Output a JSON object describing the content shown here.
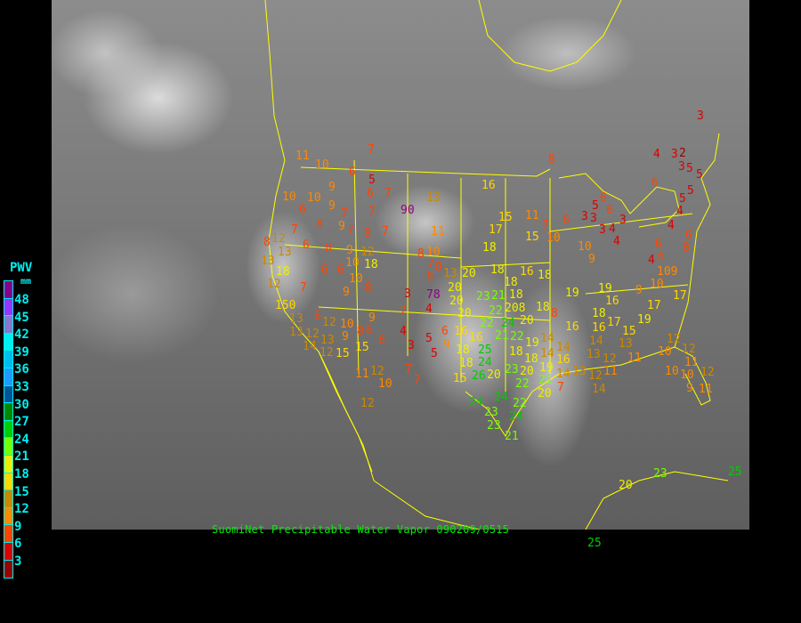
{
  "caption": "SuomiNet Precipitable Water Vapor 090209/0515",
  "legend": {
    "title": "PWV",
    "unit": "mm",
    "ticks": [
      "48",
      "45",
      "42",
      "39",
      "36",
      "33",
      "30",
      "27",
      "24",
      "21",
      "18",
      "15",
      "12",
      "9",
      "6",
      "3"
    ],
    "colors": [
      "#8b008b",
      "#9933ff",
      "#8877cc",
      "#00eeee",
      "#00bbee",
      "#2299ff",
      "#005599",
      "#008800",
      "#00cc00",
      "#77ff00",
      "#eeee00",
      "#ffd700",
      "#cc8800",
      "#ff8800",
      "#ff4400",
      "#dd0000",
      "#990000"
    ]
  },
  "map": {
    "type": "satellite water vapor imagery with station PWV values",
    "border_color": "#ffff00",
    "stations": [
      "7",
      "11",
      "10",
      "6",
      "5",
      "9",
      "6",
      "7",
      "10",
      "10",
      "13",
      "6",
      "9",
      "7",
      "7",
      "90",
      "8",
      "9",
      "7",
      "8",
      "7",
      "11",
      "7",
      "8",
      "12",
      "13",
      "6",
      "8",
      "9",
      "12",
      "8",
      "10",
      "13",
      "10",
      "18",
      "7",
      "8",
      "18",
      "6",
      "6",
      "8",
      "13",
      "20",
      "12",
      "10",
      "7",
      "8",
      "9",
      "3",
      "78",
      "150",
      "20",
      "13",
      "6",
      "12",
      "9",
      "7",
      "20",
      "4",
      "10",
      "9",
      "8",
      "6",
      "6",
      "16",
      "13",
      "12",
      "13",
      "4",
      "6",
      "5",
      "9",
      "18",
      "14",
      "12",
      "15",
      "3",
      "5",
      "15",
      "11",
      "12",
      "10",
      "7",
      "7",
      "15",
      "8",
      "4",
      "3",
      "2",
      "3",
      "5",
      "5",
      "16",
      "6",
      "6",
      "5",
      "6",
      "5",
      "5",
      "4",
      "15",
      "11",
      "7",
      "6",
      "3",
      "3",
      "3",
      "4",
      "3",
      "4",
      "17",
      "15",
      "10",
      "6",
      "4",
      "18",
      "10",
      "8",
      "6",
      "6",
      "9",
      "4",
      "18",
      "16",
      "18",
      "109",
      "18",
      "18",
      "21",
      "10",
      "19",
      "19",
      "9",
      "17",
      "23",
      "208",
      "22",
      "16",
      "20",
      "17",
      "18",
      "8",
      "18",
      "19",
      "24",
      "22",
      "21",
      "20",
      "16",
      "25",
      "22",
      "16",
      "17",
      "16",
      "15",
      "13",
      "12",
      "19",
      "18",
      "14",
      "18",
      "14",
      "14",
      "14",
      "16",
      "13",
      "12",
      "11",
      "10",
      "12",
      "24",
      "18",
      "20",
      "19",
      "14",
      "13",
      "11",
      "20",
      "23",
      "26",
      "12",
      "11",
      "10",
      "12",
      "22",
      "21",
      "7",
      "14",
      "10",
      "9",
      "11",
      "20",
      "24",
      "24",
      "23",
      "22",
      "24",
      "23",
      "21",
      "3",
      "20",
      "23",
      "25",
      "25",
      "12"
    ]
  }
}
